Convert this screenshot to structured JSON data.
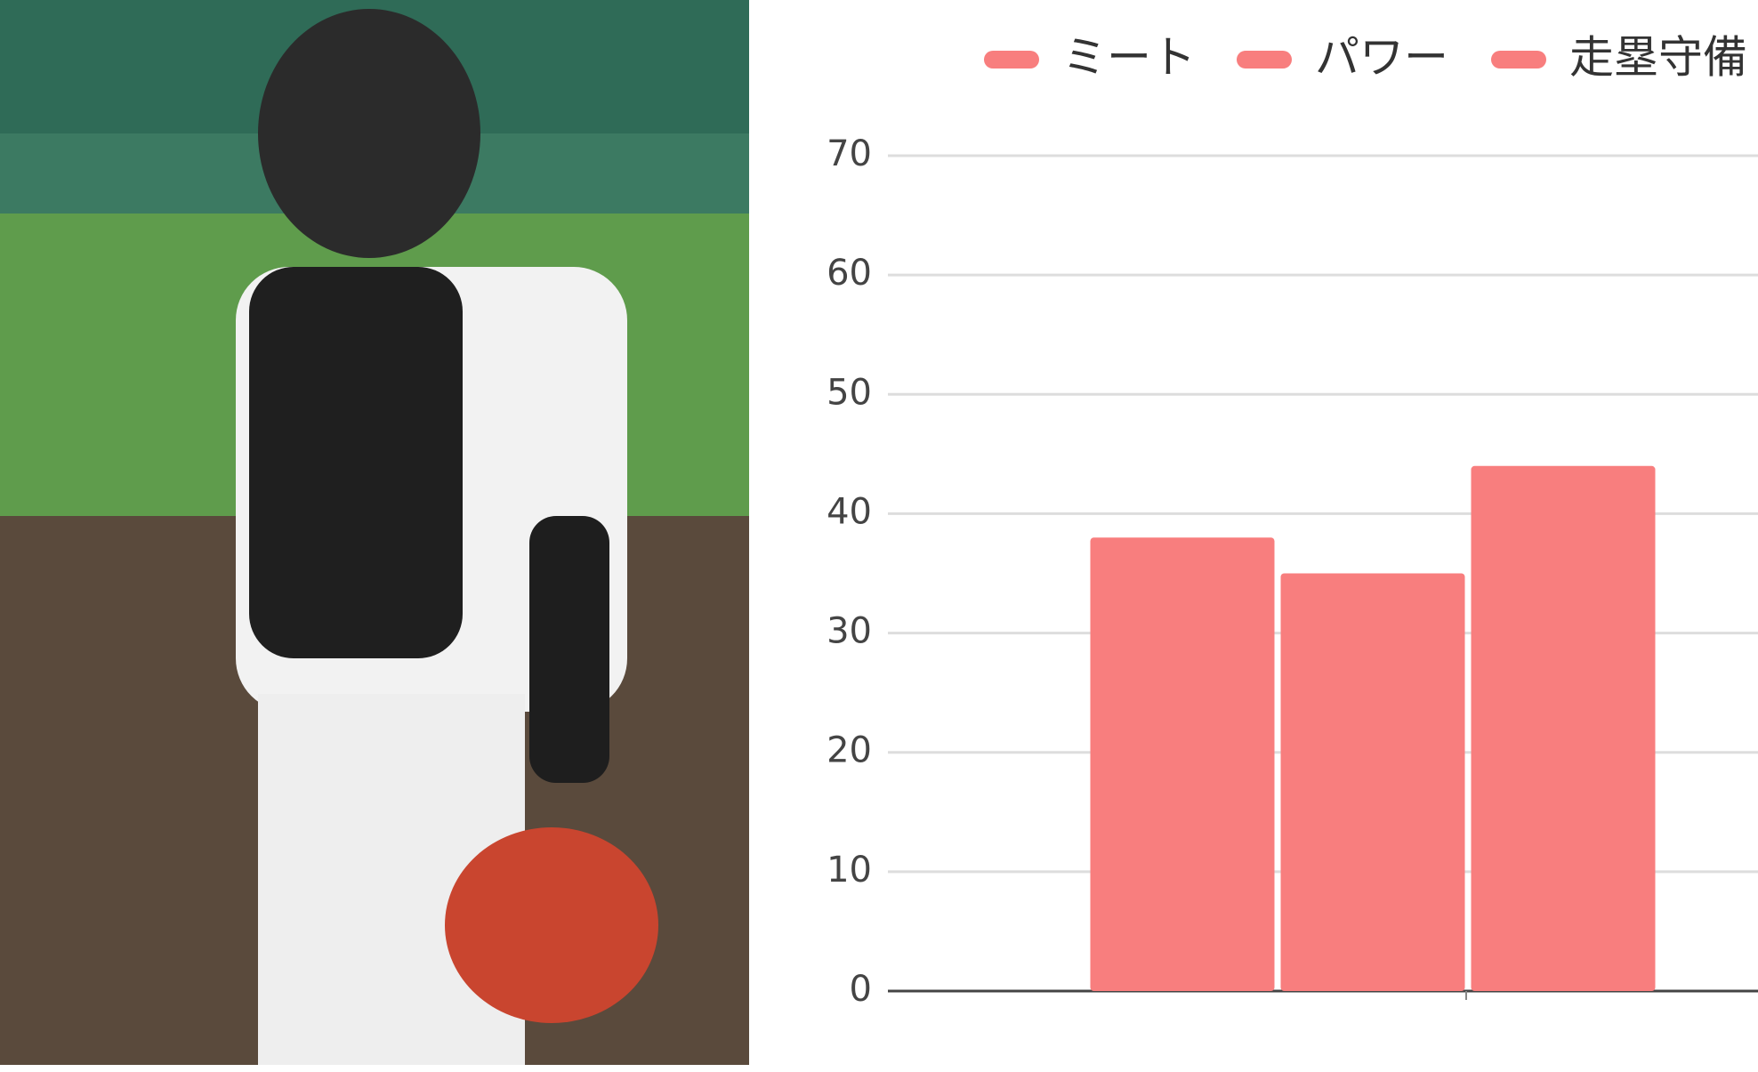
{
  "chart_data": {
    "type": "bar",
    "categories": [
      null
    ],
    "series": [
      {
        "name": "ミート",
        "color": "#f87e7e",
        "values": [
          38
        ]
      },
      {
        "name": "パワー",
        "color": "#f87e7e",
        "values": [
          35
        ]
      },
      {
        "name": "走塁守備",
        "color": "#f87e7e",
        "values": [
          44
        ]
      }
    ],
    "ylim": [
      0,
      70
    ],
    "yticks": [
      0,
      10,
      20,
      30,
      40,
      50,
      60,
      70
    ],
    "grid": true,
    "legend": "top"
  }
}
